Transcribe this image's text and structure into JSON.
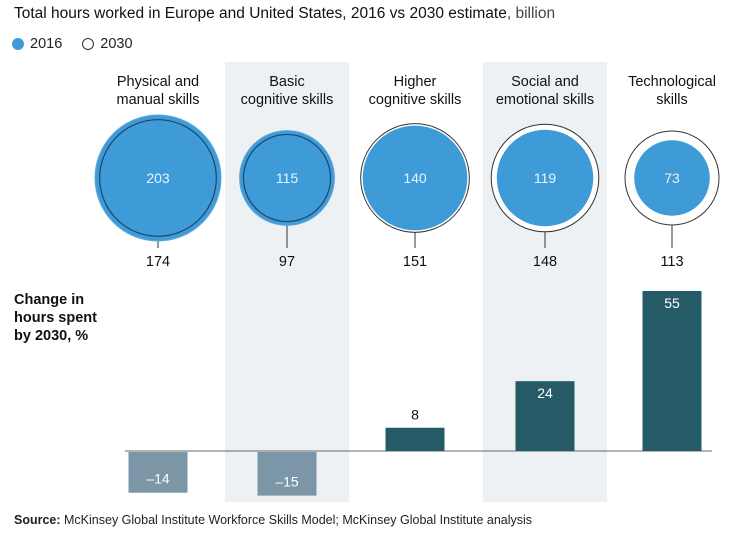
{
  "title": "Total hours worked in Europe and United States, 2016 vs 2030 estimate",
  "title_unit": ", billion",
  "legend": [
    {
      "label": "2016",
      "style": "filled",
      "color": "#3f9bd8"
    },
    {
      "label": "2030",
      "style": "outline"
    }
  ],
  "chart_data": [
    {
      "type": "bubble",
      "title": "Total hours worked in Europe and United States, 2016 vs 2030 estimate, billion",
      "categories": [
        "Physical and manual skills",
        "Basic cognitive skills",
        "Higher cognitive skills",
        "Social and emotional skills",
        "Technological skills"
      ],
      "series": [
        {
          "name": "2016",
          "values": [
            203,
            115,
            140,
            119,
            73
          ],
          "color": "#3f9bd8"
        },
        {
          "name": "2030",
          "values": [
            174,
            97,
            151,
            148,
            113
          ]
        }
      ]
    },
    {
      "type": "bar",
      "ylabel": "Change in hours spent by 2030, %",
      "categories": [
        "Physical and manual skills",
        "Basic cognitive skills",
        "Higher cognitive skills",
        "Social and emotional skills",
        "Technological skills"
      ],
      "values": [
        -14,
        -15,
        8,
        24,
        55
      ],
      "value_labels": [
        "–14",
        "–15",
        "8",
        "24",
        "55"
      ],
      "colors": {
        "positive": "#245b67",
        "negative": "#7b96a6"
      }
    }
  ],
  "category_labels": [
    [
      "Physical and",
      "manual skills"
    ],
    [
      "Basic",
      "cognitive skills"
    ],
    [
      "Higher",
      "cognitive skills"
    ],
    [
      "Social and",
      "emotional skills"
    ],
    [
      "Technological",
      "skills"
    ]
  ],
  "ylabel_lines": [
    "Change in",
    "hours spent",
    "by 2030, %"
  ],
  "source_label": "Source:",
  "source_text": " McKinsey Global Institute Workforce Skills Model; McKinsey Global Institute analysis"
}
